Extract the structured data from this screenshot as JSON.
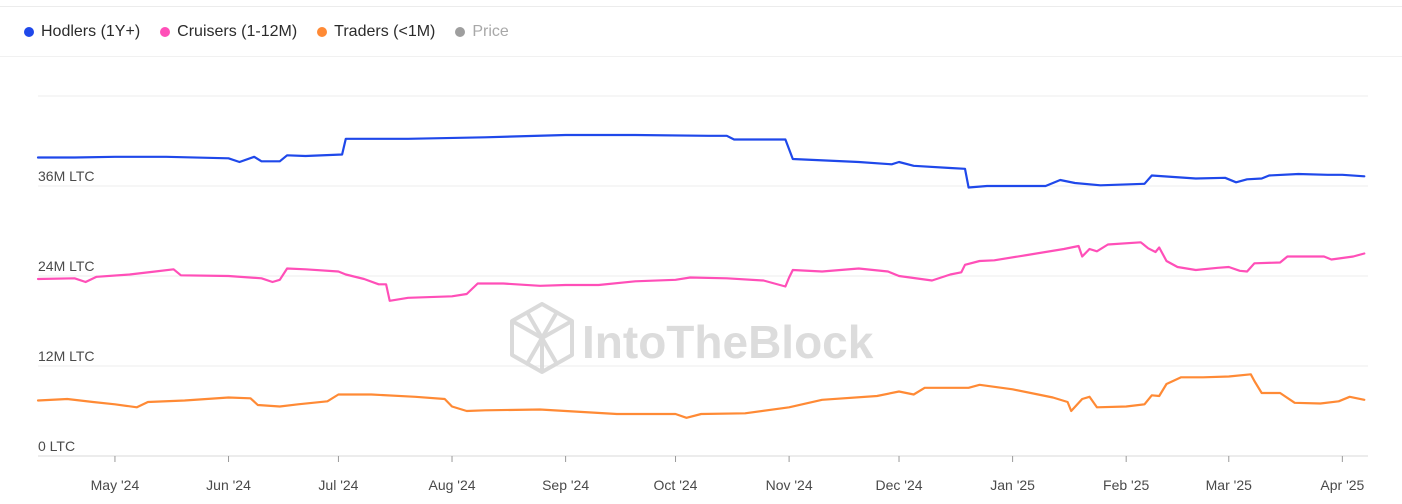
{
  "legend": {
    "items": [
      {
        "label": "Hodlers (1Y+)",
        "color": "#1f48ea",
        "active": true
      },
      {
        "label": "Cruisers (1-12M)",
        "color": "#ff4fb8",
        "active": true
      },
      {
        "label": "Traders (<1M)",
        "color": "#ff8a35",
        "active": true
      },
      {
        "label": "Price",
        "color": "#9e9e9e",
        "active": false
      }
    ]
  },
  "watermark": {
    "text": "IntoTheBlock"
  },
  "chart_data": {
    "type": "line",
    "y_unit": "LTC",
    "yticks": [
      {
        "value": 0,
        "label": "0 LTC"
      },
      {
        "value": 12,
        "label": "12M LTC"
      },
      {
        "value": 24,
        "label": "24M LTC"
      },
      {
        "value": 36,
        "label": "36M LTC"
      }
    ],
    "ylim_millions": [
      0,
      48
    ],
    "xlim": [
      "2024-04-10",
      "2025-04-08"
    ],
    "xticks": [
      {
        "date": "2024-05-01",
        "label": "May '24"
      },
      {
        "date": "2024-06-01",
        "label": "Jun '24"
      },
      {
        "date": "2024-07-01",
        "label": "Jul '24"
      },
      {
        "date": "2024-08-01",
        "label": "Aug '24"
      },
      {
        "date": "2024-09-01",
        "label": "Sep '24"
      },
      {
        "date": "2024-10-01",
        "label": "Oct '24"
      },
      {
        "date": "2024-11-01",
        "label": "Nov '24"
      },
      {
        "date": "2024-12-01",
        "label": "Dec '24"
      },
      {
        "date": "2025-01-01",
        "label": "Jan '25"
      },
      {
        "date": "2025-02-01",
        "label": "Feb '25"
      },
      {
        "date": "2025-03-01",
        "label": "Mar '25"
      },
      {
        "date": "2025-04-01",
        "label": "Apr '25"
      }
    ],
    "grid": true,
    "series": [
      {
        "name": "Hodlers (1Y+)",
        "color": "#1f48ea",
        "points": [
          [
            "2024-04-10",
            39.8
          ],
          [
            "2024-04-20",
            39.8
          ],
          [
            "2024-05-01",
            39.9
          ],
          [
            "2024-05-15",
            39.9
          ],
          [
            "2024-06-01",
            39.7
          ],
          [
            "2024-06-04",
            39.2
          ],
          [
            "2024-06-08",
            39.9
          ],
          [
            "2024-06-10",
            39.3
          ],
          [
            "2024-06-15",
            39.3
          ],
          [
            "2024-06-17",
            40.1
          ],
          [
            "2024-06-22",
            40.0
          ],
          [
            "2024-07-02",
            40.2
          ],
          [
            "2024-07-03",
            42.3
          ],
          [
            "2024-07-20",
            42.3
          ],
          [
            "2024-08-10",
            42.5
          ],
          [
            "2024-09-01",
            42.8
          ],
          [
            "2024-09-20",
            42.8
          ],
          [
            "2024-10-10",
            42.7
          ],
          [
            "2024-10-15",
            42.7
          ],
          [
            "2024-10-17",
            42.2
          ],
          [
            "2024-10-31",
            42.2
          ],
          [
            "2024-11-02",
            39.6
          ],
          [
            "2024-11-20",
            39.2
          ],
          [
            "2024-11-29",
            38.9
          ],
          [
            "2024-12-01",
            39.2
          ],
          [
            "2024-12-05",
            38.7
          ],
          [
            "2024-12-15",
            38.4
          ],
          [
            "2024-12-19",
            38.3
          ],
          [
            "2024-12-20",
            35.8
          ],
          [
            "2024-12-25",
            36.0
          ],
          [
            "2025-01-10",
            36.0
          ],
          [
            "2025-01-14",
            36.8
          ],
          [
            "2025-01-18",
            36.4
          ],
          [
            "2025-01-25",
            36.1
          ],
          [
            "2025-02-06",
            36.3
          ],
          [
            "2025-02-08",
            37.4
          ],
          [
            "2025-02-20",
            37.0
          ],
          [
            "2025-02-28",
            37.1
          ],
          [
            "2025-03-03",
            36.5
          ],
          [
            "2025-03-06",
            36.9
          ],
          [
            "2025-03-10",
            37.0
          ],
          [
            "2025-03-12",
            37.4
          ],
          [
            "2025-03-20",
            37.6
          ],
          [
            "2025-03-28",
            37.5
          ],
          [
            "2025-04-01",
            37.5
          ],
          [
            "2025-04-07",
            37.3
          ]
        ]
      },
      {
        "name": "Cruisers (1-12M)",
        "color": "#ff4fb8",
        "points": [
          [
            "2024-04-10",
            23.6
          ],
          [
            "2024-04-20",
            23.7
          ],
          [
            "2024-04-23",
            23.2
          ],
          [
            "2024-04-26",
            23.9
          ],
          [
            "2024-05-05",
            24.2
          ],
          [
            "2024-05-12",
            24.6
          ],
          [
            "2024-05-17",
            24.9
          ],
          [
            "2024-05-19",
            24.1
          ],
          [
            "2024-06-01",
            24.0
          ],
          [
            "2024-06-10",
            23.7
          ],
          [
            "2024-06-13",
            23.2
          ],
          [
            "2024-06-15",
            23.5
          ],
          [
            "2024-06-17",
            25.0
          ],
          [
            "2024-06-22",
            24.9
          ],
          [
            "2024-07-01",
            24.6
          ],
          [
            "2024-07-03",
            24.2
          ],
          [
            "2024-07-08",
            23.6
          ],
          [
            "2024-07-12",
            22.9
          ],
          [
            "2024-07-14",
            22.9
          ],
          [
            "2024-07-15",
            20.7
          ],
          [
            "2024-07-20",
            21.1
          ],
          [
            "2024-08-01",
            21.3
          ],
          [
            "2024-08-05",
            21.6
          ],
          [
            "2024-08-08",
            23.0
          ],
          [
            "2024-08-15",
            23.0
          ],
          [
            "2024-08-25",
            22.7
          ],
          [
            "2024-09-01",
            22.8
          ],
          [
            "2024-09-10",
            22.8
          ],
          [
            "2024-09-20",
            23.3
          ],
          [
            "2024-10-01",
            23.5
          ],
          [
            "2024-10-05",
            23.8
          ],
          [
            "2024-10-15",
            23.7
          ],
          [
            "2024-10-25",
            23.4
          ],
          [
            "2024-10-31",
            22.6
          ],
          [
            "2024-11-01",
            23.8
          ],
          [
            "2024-11-02",
            24.8
          ],
          [
            "2024-11-10",
            24.6
          ],
          [
            "2024-11-20",
            25.0
          ],
          [
            "2024-11-28",
            24.6
          ],
          [
            "2024-12-01",
            24.0
          ],
          [
            "2024-12-10",
            23.4
          ],
          [
            "2024-12-15",
            24.2
          ],
          [
            "2024-12-18",
            24.5
          ],
          [
            "2024-12-19",
            25.5
          ],
          [
            "2024-12-23",
            26.0
          ],
          [
            "2024-12-27",
            26.1
          ],
          [
            "2025-01-05",
            26.8
          ],
          [
            "2025-01-15",
            27.6
          ],
          [
            "2025-01-19",
            28.0
          ],
          [
            "2025-01-20",
            26.6
          ],
          [
            "2025-01-22",
            27.6
          ],
          [
            "2025-01-24",
            27.3
          ],
          [
            "2025-01-27",
            28.2
          ],
          [
            "2025-02-05",
            28.5
          ],
          [
            "2025-02-07",
            27.7
          ],
          [
            "2025-02-09",
            27.2
          ],
          [
            "2025-02-10",
            27.8
          ],
          [
            "2025-02-12",
            26.0
          ],
          [
            "2025-02-15",
            25.2
          ],
          [
            "2025-02-20",
            24.8
          ],
          [
            "2025-02-26",
            25.1
          ],
          [
            "2025-03-01",
            25.2
          ],
          [
            "2025-03-04",
            24.7
          ],
          [
            "2025-03-06",
            24.6
          ],
          [
            "2025-03-08",
            25.7
          ],
          [
            "2025-03-15",
            25.8
          ],
          [
            "2025-03-17",
            26.6
          ],
          [
            "2025-03-27",
            26.6
          ],
          [
            "2025-03-29",
            26.2
          ],
          [
            "2025-04-04",
            26.6
          ],
          [
            "2025-04-07",
            27.0
          ]
        ]
      },
      {
        "name": "Traders (<1M)",
        "color": "#ff8a35",
        "points": [
          [
            "2024-04-10",
            7.4
          ],
          [
            "2024-04-18",
            7.6
          ],
          [
            "2024-04-25",
            7.2
          ],
          [
            "2024-05-01",
            6.9
          ],
          [
            "2024-05-07",
            6.5
          ],
          [
            "2024-05-10",
            7.2
          ],
          [
            "2024-05-20",
            7.4
          ],
          [
            "2024-06-01",
            7.8
          ],
          [
            "2024-06-07",
            7.7
          ],
          [
            "2024-06-09",
            6.8
          ],
          [
            "2024-06-15",
            6.6
          ],
          [
            "2024-06-20",
            6.9
          ],
          [
            "2024-06-28",
            7.3
          ],
          [
            "2024-07-01",
            8.2
          ],
          [
            "2024-07-10",
            8.2
          ],
          [
            "2024-07-22",
            7.9
          ],
          [
            "2024-07-30",
            7.6
          ],
          [
            "2024-08-01",
            6.6
          ],
          [
            "2024-08-05",
            6.0
          ],
          [
            "2024-08-10",
            6.1
          ],
          [
            "2024-08-25",
            6.2
          ],
          [
            "2024-09-01",
            6.0
          ],
          [
            "2024-09-15",
            5.6
          ],
          [
            "2024-10-01",
            5.6
          ],
          [
            "2024-10-04",
            5.1
          ],
          [
            "2024-10-08",
            5.6
          ],
          [
            "2024-10-20",
            5.7
          ],
          [
            "2024-11-01",
            6.5
          ],
          [
            "2024-11-10",
            7.5
          ],
          [
            "2024-11-25",
            8.0
          ],
          [
            "2024-12-01",
            8.6
          ],
          [
            "2024-12-05",
            8.2
          ],
          [
            "2024-12-08",
            9.1
          ],
          [
            "2024-12-20",
            9.1
          ],
          [
            "2024-12-23",
            9.5
          ],
          [
            "2025-01-01",
            8.9
          ],
          [
            "2025-01-08",
            8.2
          ],
          [
            "2025-01-12",
            7.8
          ],
          [
            "2025-01-16",
            7.2
          ],
          [
            "2025-01-17",
            6.0
          ],
          [
            "2025-01-20",
            7.6
          ],
          [
            "2025-01-22",
            7.9
          ],
          [
            "2025-01-24",
            6.5
          ],
          [
            "2025-02-01",
            6.6
          ],
          [
            "2025-02-06",
            6.9
          ],
          [
            "2025-02-08",
            8.1
          ],
          [
            "2025-02-10",
            8.0
          ],
          [
            "2025-02-12",
            9.6
          ],
          [
            "2025-02-16",
            10.5
          ],
          [
            "2025-02-22",
            10.5
          ],
          [
            "2025-03-01",
            10.6
          ],
          [
            "2025-03-07",
            10.9
          ],
          [
            "2025-03-08",
            10.0
          ],
          [
            "2025-03-10",
            8.4
          ],
          [
            "2025-03-15",
            8.4
          ],
          [
            "2025-03-19",
            7.1
          ],
          [
            "2025-03-26",
            7.0
          ],
          [
            "2025-03-31",
            7.3
          ],
          [
            "2025-04-03",
            7.9
          ],
          [
            "2025-04-07",
            7.5
          ]
        ]
      }
    ]
  }
}
